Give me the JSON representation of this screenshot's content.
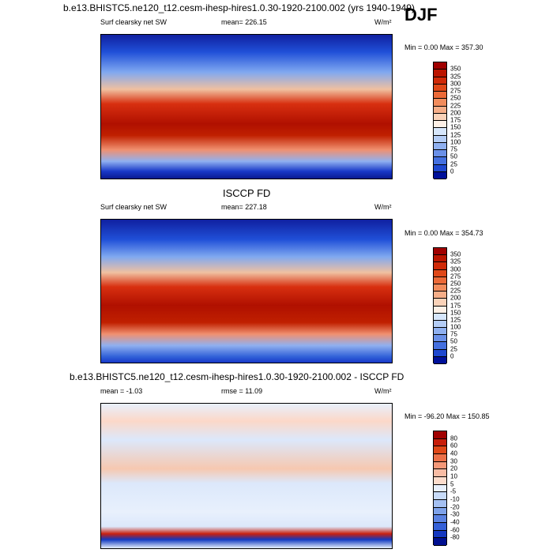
{
  "header": {
    "title": "b.e13.BHISTC5.ne120_t12.cesm-ihesp-hires1.0.30-1920-2100.002 (yrs 1940-1949)",
    "season": "DJF"
  },
  "panels": [
    {
      "left": "Surf clearsky net SW",
      "center": "mean= 226.15",
      "units": "W/m²",
      "minmax": "Min =   0.00 Max = 357.30",
      "colorbar": {
        "labels": [
          350,
          325,
          300,
          275,
          250,
          225,
          200,
          175,
          150,
          125,
          100,
          75,
          50,
          25,
          0
        ],
        "colors": [
          "#a00000",
          "#bb1500",
          "#d02a08",
          "#e04818",
          "#ec6a38",
          "#f28c5c",
          "#f6ae88",
          "#fad2b8",
          "#fdf0e6",
          "#d6e6fb",
          "#b4cdf6",
          "#8fb0f0",
          "#6a90e8",
          "#4470e0",
          "#1e48d0",
          "#00109a"
        ]
      }
    },
    {
      "heading": "ISCCP FD",
      "left": "Surf clearsky net SW",
      "center": "mean= 227.18",
      "units": "W/m²",
      "minmax": "Min =   0.00 Max = 354.73",
      "colorbar": {
        "labels": [
          350,
          325,
          300,
          275,
          250,
          225,
          200,
          175,
          150,
          125,
          100,
          75,
          50,
          25,
          0
        ],
        "colors": [
          "#a00000",
          "#bb1500",
          "#d02a08",
          "#e04818",
          "#ec6a38",
          "#f28c5c",
          "#f6ae88",
          "#fad2b8",
          "#fdf0e6",
          "#d6e6fb",
          "#b4cdf6",
          "#8fb0f0",
          "#6a90e8",
          "#4470e0",
          "#1e48d0",
          "#00109a"
        ]
      }
    },
    {
      "heading": "b.e13.BHISTC5.ne120_t12.cesm-ihesp-hires1.0.30-1920-2100.002 - ISCCP FD",
      "left": "mean =  -1.03",
      "center": "rmse =  11.09",
      "units": "W/m²",
      "minmax": "Min = -96.20 Max = 150.85",
      "colorbar": {
        "labels": [
          80,
          60,
          40,
          30,
          20,
          10,
          5,
          -5,
          -10,
          -20,
          -30,
          -40,
          -60,
          -80
        ],
        "colors": [
          "#a00000",
          "#c81e0a",
          "#e04818",
          "#ec7048",
          "#f49878",
          "#f8bca4",
          "#fcdccc",
          "#e8f0fc",
          "#c8dbf8",
          "#a4c0f2",
          "#7ea2ea",
          "#5a82e2",
          "#3460d8",
          "#1438c0",
          "#001090"
        ]
      }
    }
  ]
}
